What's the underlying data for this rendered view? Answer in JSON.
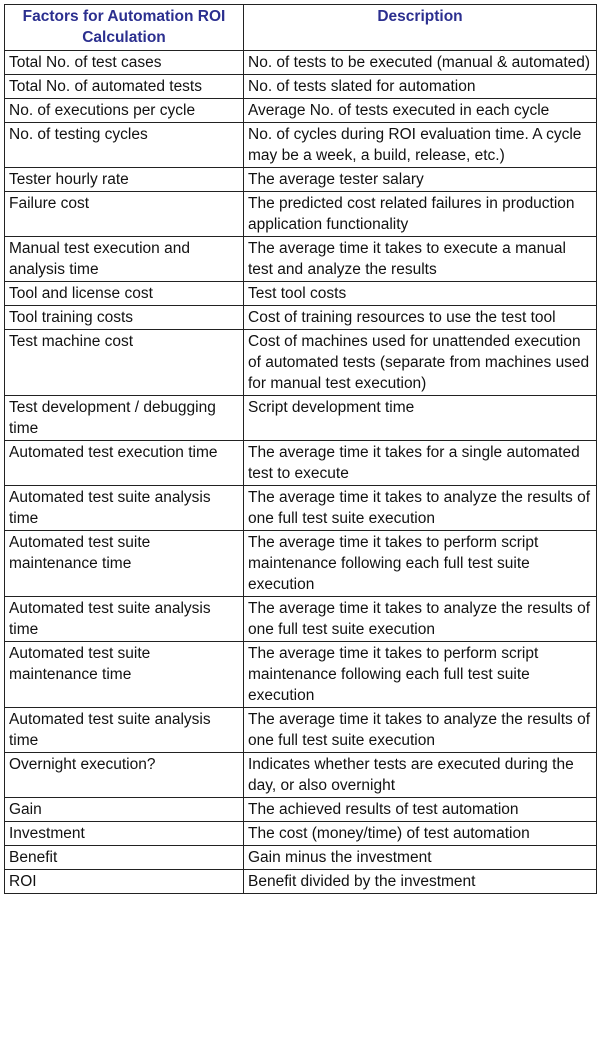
{
  "table": {
    "headers": [
      "Factors for Automation ROI Calculation",
      "Description"
    ],
    "rows": [
      {
        "factor": "Total No. of test cases",
        "description": "No. of tests to be executed (manual & automated)"
      },
      {
        "factor": "Total No. of automated tests",
        "description": "No. of tests slated for automation"
      },
      {
        "factor": "No. of executions per cycle",
        "description": "Average No. of tests executed in each cycle"
      },
      {
        "factor": "No. of testing cycles",
        "description": "No. of cycles during ROI evaluation time. A cycle may be a week, a build, release, etc.)"
      },
      {
        "factor": "Tester hourly rate",
        "description": "The average tester salary"
      },
      {
        "factor": "Failure cost",
        "description": "The predicted cost related failures in production application functionality"
      },
      {
        "factor": "Manual test execution and analysis time",
        "description": "The average time it takes to execute a manual test and analyze the results"
      },
      {
        "factor": "Tool and license cost",
        "description": "Test tool costs"
      },
      {
        "factor": "Tool training costs",
        "description": "Cost of training resources to use the test tool"
      },
      {
        "factor": "Test machine cost",
        "description": "Cost of machines used for unattended execution of automated tests (separate from machines used for manual test execution)"
      },
      {
        "factor": "Test development / debugging time",
        "description": "Script development time"
      },
      {
        "factor": "Automated test execution time",
        "description": "The average time it takes for a single automated test to execute"
      },
      {
        "factor": "Automated test suite analysis time",
        "description": "The average time it takes to analyze the results of one full test suite execution"
      },
      {
        "factor": "Automated test suite maintenance time",
        "description": "The average time it takes to perform script maintenance following each full test suite execution"
      },
      {
        "factor": "Automated test suite analysis time",
        "description": "The average time it takes to analyze the results of one full test suite execution"
      },
      {
        "factor": "Automated test suite maintenance time",
        "description": "The average time it takes to perform script maintenance following each full test suite execution"
      },
      {
        "factor": "Automated test suite analysis time",
        "description": "The average time it takes to analyze the results of one full test suite execution"
      },
      {
        "factor": "Overnight execution?",
        "description": "Indicates whether tests are executed during the day, or also overnight"
      },
      {
        "factor": "Gain",
        "description": "The achieved results of test automation"
      },
      {
        "factor": "Investment",
        "description": "The cost (money/time) of test automation"
      },
      {
        "factor": "Benefit",
        "description": "Gain minus the investment"
      },
      {
        "factor": "ROI",
        "description": "Benefit divided by the investment"
      }
    ]
  },
  "colors": {
    "header_text": "#2b2f8f",
    "body_text": "#111111",
    "border": "#222222"
  }
}
